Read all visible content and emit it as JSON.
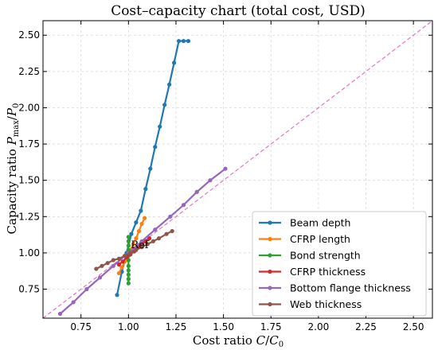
{
  "chart_data": {
    "type": "line",
    "title": "Cost–capacity chart (total cost, USD)",
    "xlabel": "Cost ratio C/C0",
    "ylabel": "Capacity ratio Pmax/P0",
    "xlim": [
      0.55,
      2.6
    ],
    "ylim": [
      0.55,
      2.6
    ],
    "xticks": [
      "0.75",
      "1.00",
      "1.25",
      "1.50",
      "1.75",
      "2.00",
      "2.25",
      "2.50"
    ],
    "yticks": [
      "0.75",
      "1.00",
      "1.25",
      "1.50",
      "1.75",
      "2.00",
      "2.25",
      "2.50"
    ],
    "xtick_values": [
      0.75,
      1.0,
      1.25,
      1.5,
      1.75,
      2.0,
      2.25,
      2.5
    ],
    "ytick_values": [
      0.75,
      1.0,
      1.25,
      1.5,
      1.75,
      2.0,
      2.25,
      2.5
    ],
    "grid": true,
    "legend_position": "lower-right",
    "reference_line": {
      "type": "y=x",
      "color": "#e377c2",
      "style": "dashed"
    },
    "annotation": {
      "text": "Ref",
      "x": 1.0,
      "y": 1.0
    },
    "series": [
      {
        "name": "Beam depth",
        "color": "#1f77b4",
        "x": [
          0.94,
          0.965,
          0.99,
          1.015,
          1.04,
          1.065,
          1.09,
          1.115,
          1.14,
          1.165,
          1.19,
          1.215,
          1.24,
          1.265,
          1.29,
          1.315
        ],
        "y": [
          0.71,
          0.87,
          1.0,
          1.13,
          1.21,
          1.29,
          1.44,
          1.58,
          1.73,
          1.87,
          2.02,
          2.16,
          2.31,
          2.46,
          2.46,
          2.46
        ]
      },
      {
        "name": "CFRP length",
        "color": "#ff7f0e",
        "x": [
          0.95,
          0.965,
          0.98,
          0.995,
          1.01,
          1.025,
          1.04,
          1.055,
          1.07,
          1.085
        ],
        "y": [
          0.86,
          0.9,
          0.94,
          0.98,
          1.02,
          1.06,
          1.1,
          1.15,
          1.2,
          1.24
        ]
      },
      {
        "name": "Bond strength",
        "color": "#2ca02c",
        "x": [
          1.0,
          1.0,
          1.0,
          1.0,
          1.0,
          1.0,
          1.0,
          1.0,
          1.0,
          1.0,
          1.0
        ],
        "y": [
          0.79,
          0.82,
          0.85,
          0.88,
          0.91,
          0.95,
          0.98,
          1.02,
          1.05,
          1.08,
          1.11
        ]
      },
      {
        "name": "CFRP thickness",
        "color": "#d62728",
        "x": [
          0.95,
          0.97,
          0.99,
          1.01,
          1.03,
          1.05,
          1.07,
          1.09,
          1.11
        ],
        "y": [
          0.92,
          0.94,
          0.97,
          0.99,
          1.01,
          1.04,
          1.06,
          1.08,
          1.1
        ]
      },
      {
        "name": "Bottom flange thickness",
        "color": "#9467bd",
        "x": [
          0.64,
          0.71,
          0.78,
          0.85,
          0.92,
          1.0,
          1.07,
          1.14,
          1.22,
          1.29,
          1.36,
          1.43,
          1.51
        ],
        "y": [
          0.58,
          0.66,
          0.75,
          0.83,
          0.91,
          1.0,
          1.08,
          1.16,
          1.25,
          1.33,
          1.42,
          1.5,
          1.58
        ]
      },
      {
        "name": "Web thickness",
        "color": "#8c564b",
        "x": [
          0.83,
          0.86,
          0.89,
          0.92,
          0.95,
          0.98,
          1.01,
          1.04,
          1.07,
          1.1,
          1.13,
          1.16,
          1.2,
          1.23
        ],
        "y": [
          0.89,
          0.91,
          0.93,
          0.95,
          0.96,
          0.98,
          1.0,
          1.02,
          1.04,
          1.06,
          1.08,
          1.1,
          1.13,
          1.15
        ]
      }
    ]
  }
}
